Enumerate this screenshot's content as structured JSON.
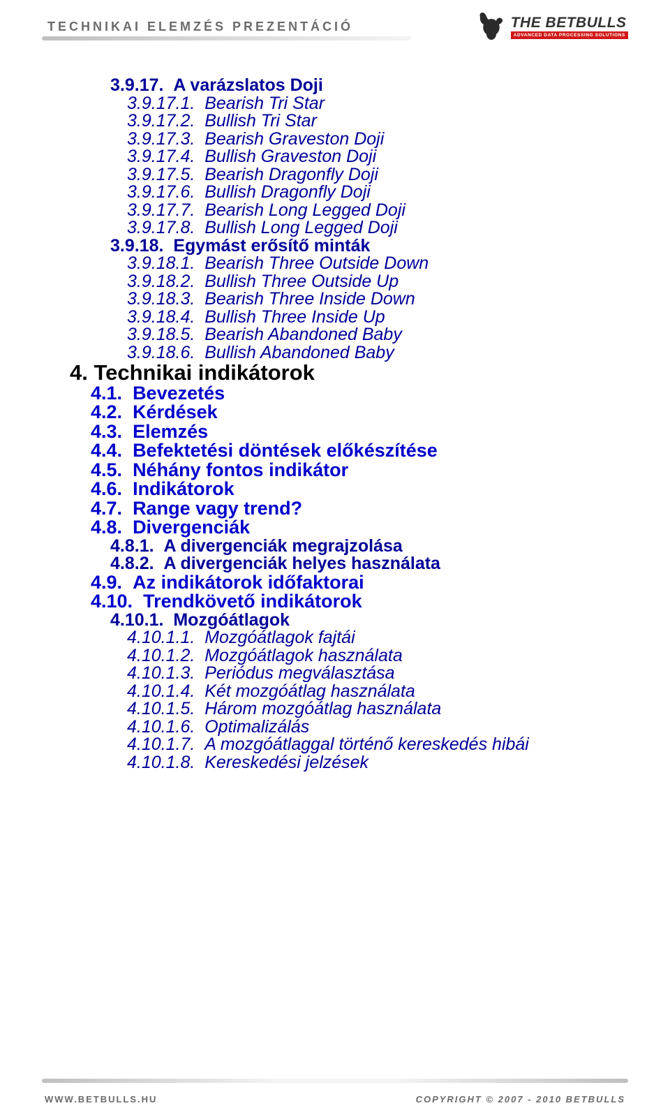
{
  "header": {
    "title": "TECHNIKAI ELEMZÉS PREZENTÁCIÓ",
    "logo_main": "THE BETBULLS",
    "logo_sub": "ADVANCED DATA PROCESSING SOLUTIONS"
  },
  "footer": {
    "left": "WWW.BETBULLS.HU",
    "right": "COPYRIGHT © 2007 - 2010 BETBULLS"
  },
  "colors": {
    "heading_black": "#000000",
    "heading_blue": "#0000cc",
    "sub_blue": "#000099",
    "header_text": "#6b6b6b",
    "logo_red": "#d01818",
    "background": "#ffffff"
  },
  "toc": [
    {
      "lvl": "lvl3",
      "num": "3.9.17.",
      "txt": "A varázslatos Doji"
    },
    {
      "lvl": "lvl3i",
      "num": "3.9.17.1.",
      "txt": "Bearish Tri Star"
    },
    {
      "lvl": "lvl3i",
      "num": "3.9.17.2.",
      "txt": "Bullish Tri Star"
    },
    {
      "lvl": "lvl3i",
      "num": "3.9.17.3.",
      "txt": "Bearish Graveston Doji"
    },
    {
      "lvl": "lvl3i",
      "num": "3.9.17.4.",
      "txt": "Bullish Graveston Doji"
    },
    {
      "lvl": "lvl3i",
      "num": "3.9.17.5.",
      "txt": "Bearish Dragonfly Doji"
    },
    {
      "lvl": "lvl3i",
      "num": "3.9.17.6.",
      "txt": "Bullish Dragonfly Doji"
    },
    {
      "lvl": "lvl3i",
      "num": "3.9.17.7.",
      "txt": "Bearish Long Legged Doji"
    },
    {
      "lvl": "lvl3i",
      "num": "3.9.17.8.",
      "txt": "Bullish Long Legged Doji"
    },
    {
      "lvl": "lvl3",
      "num": "3.9.18.",
      "txt": "Egymást erősítő minták"
    },
    {
      "lvl": "lvl3i",
      "num": "3.9.18.1.",
      "txt": "Bearish Three Outside Down"
    },
    {
      "lvl": "lvl3i",
      "num": "3.9.18.2.",
      "txt": "Bullish Three Outside Up"
    },
    {
      "lvl": "lvl3i",
      "num": "3.9.18.3.",
      "txt": "Bearish Three Inside Down"
    },
    {
      "lvl": "lvl3i",
      "num": "3.9.18.4.",
      "txt": "Bullish Three Inside Up"
    },
    {
      "lvl": "lvl3i",
      "num": "3.9.18.5.",
      "txt": "Bearish Abandoned Baby"
    },
    {
      "lvl": "lvl3i",
      "num": "3.9.18.6.",
      "txt": "Bullish Abandoned Baby"
    },
    {
      "lvl": "lvl1",
      "num": "4.",
      "txt": "Technikai indikátorok"
    },
    {
      "lvl": "lvl2",
      "num": "4.1.",
      "txt": "Bevezetés"
    },
    {
      "lvl": "lvl2",
      "num": "4.2.",
      "txt": "Kérdések"
    },
    {
      "lvl": "lvl2",
      "num": "4.3.",
      "txt": "Elemzés"
    },
    {
      "lvl": "lvl2",
      "num": "4.4.",
      "txt": "Befektetési döntések előkészítése"
    },
    {
      "lvl": "lvl2",
      "num": "4.5.",
      "txt": "Néhány fontos indikátor"
    },
    {
      "lvl": "lvl2",
      "num": "4.6.",
      "txt": "Indikátorok"
    },
    {
      "lvl": "lvl2",
      "num": "4.7.",
      "txt": "Range vagy trend?"
    },
    {
      "lvl": "lvl2",
      "num": "4.8.",
      "txt": "Divergenciák"
    },
    {
      "lvl": "lvl3b",
      "num": "4.8.1.",
      "txt": "A divergenciák megrajzolása"
    },
    {
      "lvl": "lvl3b",
      "num": "4.8.2.",
      "txt": "A divergenciák helyes használata"
    },
    {
      "lvl": "lvl2",
      "num": "4.9.",
      "txt": "Az indikátorok időfaktorai"
    },
    {
      "lvl": "lvl2",
      "num": "4.10.",
      "txt": "Trendkövető indikátorok"
    },
    {
      "lvl": "lvl3b",
      "num": "4.10.1.",
      "txt": "Mozgóátlagok"
    },
    {
      "lvl": "lvl4i",
      "num": "4.10.1.1.",
      "txt": "Mozgóátlagok fajtái"
    },
    {
      "lvl": "lvl4i",
      "num": "4.10.1.2.",
      "txt": "Mozgóátlagok használata"
    },
    {
      "lvl": "lvl4i",
      "num": "4.10.1.3.",
      "txt": "Periódus megválasztása"
    },
    {
      "lvl": "lvl4i",
      "num": "4.10.1.4.",
      "txt": "Két mozgóátlag használata"
    },
    {
      "lvl": "lvl4i",
      "num": "4.10.1.5.",
      "txt": "Három mozgóátlag használata"
    },
    {
      "lvl": "lvl4i",
      "num": "4.10.1.6.",
      "txt": "Optimalizálás"
    },
    {
      "lvl": "lvl4i",
      "num": "4.10.1.7.",
      "txt": "A mozgóátlaggal történő kereskedés hibái"
    },
    {
      "lvl": "lvl4i",
      "num": "4.10.1.8.",
      "txt": "Kereskedési jelzések"
    }
  ]
}
